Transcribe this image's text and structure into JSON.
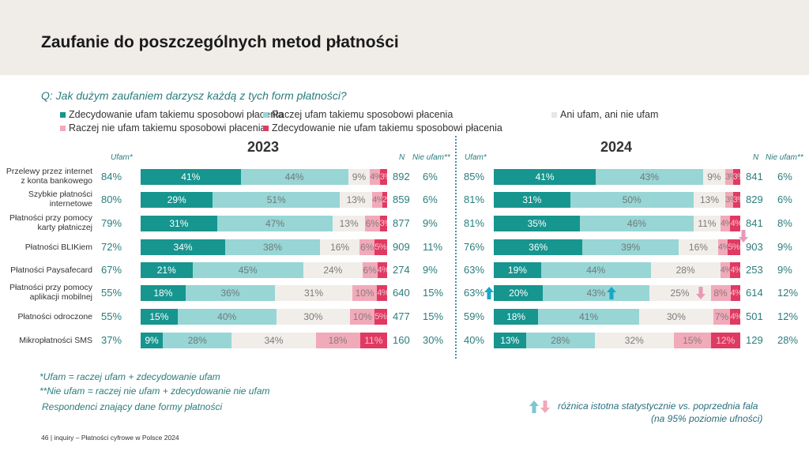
{
  "title": "Zaufanie do poszczególnych metod płatności",
  "question": "Q: Jak dużym zaufaniem darzysz każdą z tych form płatności?",
  "legend": [
    {
      "label": "Zdecydowanie ufam takiemu sposobowi płacenia",
      "color": "#17958f"
    },
    {
      "label": "Raczej ufam takiemu sposobowi płacenia",
      "color": "#98d5d5"
    },
    {
      "label": "Ani ufam, ani nie ufam",
      "color": "#f1eeea"
    },
    {
      "label": "Raczej nie ufam takiemu sposobowi płacenia",
      "color": "#f1aab9"
    },
    {
      "label": "Zdecydowanie nie ufam takiemu sposobowi płacenia",
      "color": "#e03a62"
    }
  ],
  "headers": {
    "ufam": "Ufam*",
    "n": "N",
    "nie_ufam": "Nie ufam**"
  },
  "footnotes": {
    "ufam_def": "*Ufam = raczej ufam + zdecydowanie ufam",
    "nie_ufam_def": "**Nie ufam = raczej nie ufam + zdecydowanie nie ufam",
    "base": "Respondenci znający dane formy płatności",
    "sig_line1": "różnica istotna statystycznie vs. poprzednia fala",
    "sig_line2": "(na 95% poziomie ufności)"
  },
  "page_info": "46 | inquiry – Płatności cyfrowe w Polsce 2024",
  "sig_colors": {
    "up": "#1ba6c4",
    "down": "#e79ab7"
  },
  "chart_data": [
    {
      "type": "bar",
      "orientation": "horizontal-stacked-100",
      "title": "2023",
      "categories": [
        "Przelewy przez internet z konta bankowego",
        "Szybkie płatności internetowe",
        "Płatności przy pomocy karty płatniczej",
        "Płatności BLIKiem",
        "Płatności Paysafecard",
        "Płatności przy pomocy aplikacji mobilnej",
        "Płatności odroczone",
        "Mikropłatności SMS"
      ],
      "series": [
        {
          "name": "Zdecydowanie ufam takiemu sposobowi płacenia",
          "values": [
            41,
            29,
            31,
            34,
            21,
            18,
            15,
            9
          ]
        },
        {
          "name": "Raczej ufam takiemu sposobowi płacenia",
          "values": [
            44,
            51,
            47,
            38,
            45,
            36,
            40,
            28
          ]
        },
        {
          "name": "Ani ufam, ani nie ufam",
          "values": [
            9,
            13,
            13,
            16,
            24,
            31,
            30,
            34
          ]
        },
        {
          "name": "Raczej nie ufam takiemu sposobowi płacenia",
          "values": [
            4,
            4,
            6,
            6,
            6,
            10,
            10,
            18
          ]
        },
        {
          "name": "Zdecydowanie nie ufam takiemu sposobowi płacenia",
          "values": [
            3,
            2,
            3,
            5,
            4,
            4,
            5,
            11
          ]
        }
      ],
      "ufam": [
        "84%",
        "80%",
        "79%",
        "72%",
        "67%",
        "55%",
        "55%",
        "37%"
      ],
      "n": [
        892,
        859,
        877,
        909,
        274,
        640,
        477,
        160
      ],
      "nie_ufam": [
        "6%",
        "6%",
        "9%",
        "11%",
        "9%",
        "15%",
        "15%",
        "30%"
      ],
      "xlim": [
        0,
        100
      ]
    },
    {
      "type": "bar",
      "orientation": "horizontal-stacked-100",
      "title": "2024",
      "categories": [
        "Przelewy przez internet z konta bankowego",
        "Szybkie płatności internetowe",
        "Płatności przy pomocy karty płatniczej",
        "Płatności BLIKiem",
        "Płatności Paysafecard",
        "Płatności przy pomocy aplikacji mobilnej",
        "Płatności odroczone",
        "Mikropłatności SMS"
      ],
      "series": [
        {
          "name": "Zdecydowanie ufam takiemu sposobowi płacenia",
          "values": [
            41,
            31,
            35,
            36,
            19,
            20,
            18,
            13
          ]
        },
        {
          "name": "Raczej ufam takiemu sposobowi płacenia",
          "values": [
            43,
            50,
            46,
            39,
            44,
            43,
            41,
            28
          ]
        },
        {
          "name": "Ani ufam, ani nie ufam",
          "values": [
            9,
            13,
            11,
            16,
            28,
            25,
            30,
            32
          ]
        },
        {
          "name": "Raczej nie ufam takiemu sposobowi płacenia",
          "values": [
            3,
            3,
            4,
            4,
            4,
            8,
            7,
            15
          ]
        },
        {
          "name": "Zdecydowanie nie ufam takiemu sposobowi płacenia",
          "values": [
            3,
            3,
            4,
            5,
            4,
            4,
            4,
            12
          ]
        }
      ],
      "ufam": [
        "85%",
        "81%",
        "81%",
        "76%",
        "63%",
        "63%",
        "59%",
        "40%"
      ],
      "n": [
        841,
        829,
        841,
        903,
        253,
        614,
        501,
        129
      ],
      "nie_ufam": [
        "6%",
        "6%",
        "8%",
        "9%",
        "9%",
        "12%",
        "12%",
        "28%"
      ],
      "xlim": [
        0,
        100
      ],
      "significance": [
        {
          "row": 3,
          "series": 3,
          "direction": "down"
        },
        {
          "row": 5,
          "field": "ufam",
          "direction": "up"
        },
        {
          "row": 5,
          "series": 1,
          "direction": "up"
        },
        {
          "row": 5,
          "series": 2,
          "direction": "down"
        }
      ]
    }
  ]
}
